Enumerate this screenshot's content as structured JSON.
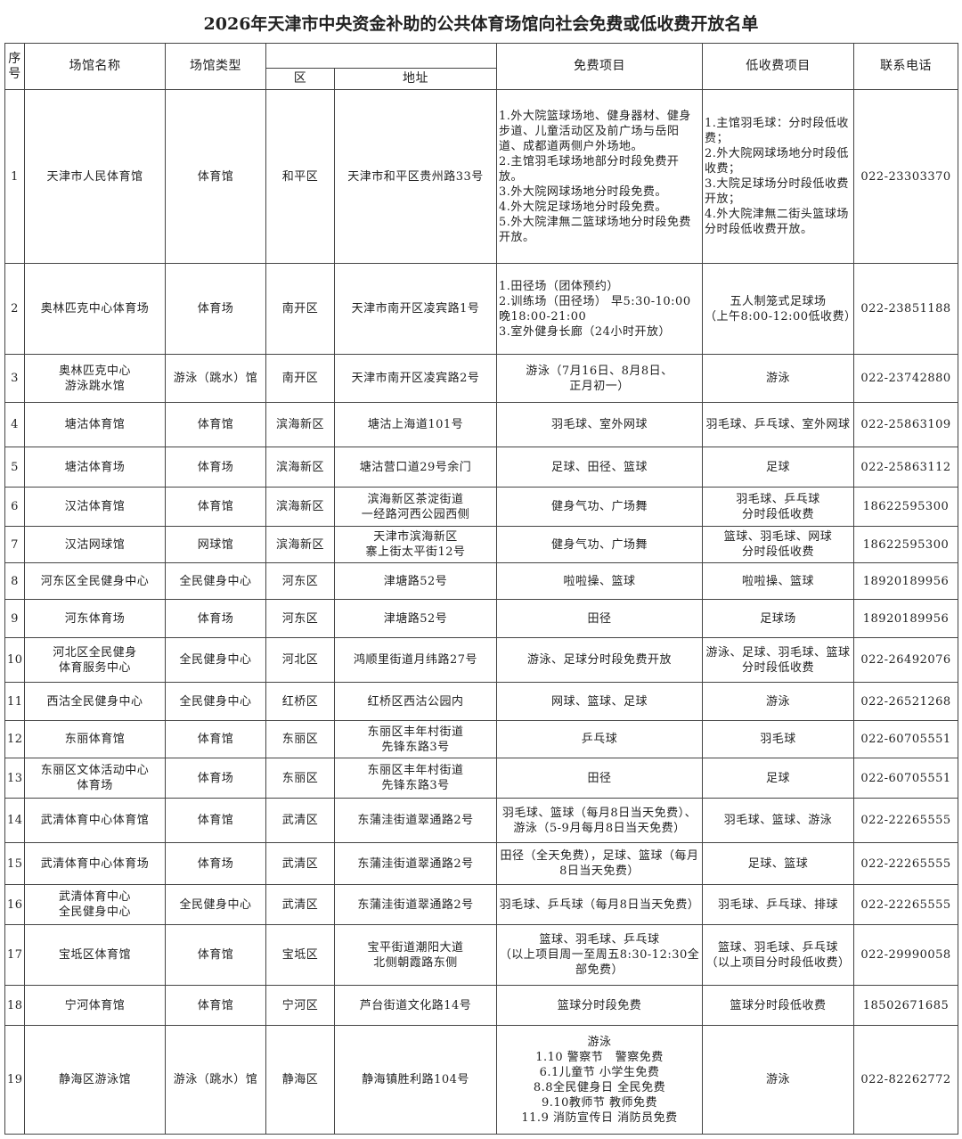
{
  "title": "2026年天津市中央资金补助的公共体育场馆向社会免费或低收费开放名单",
  "headers": {
    "seq": "序\n号",
    "name": "场馆名称",
    "type": "场馆类型",
    "district": "区",
    "address": "地址",
    "free": "免费项目",
    "low": "低收费项目",
    "phone": "联系电话"
  },
  "rows": [
    {
      "seq": "1",
      "name": "天津市人民体育馆",
      "type": "体育馆",
      "district": "和平区",
      "address": "天津市和平区贵州路33号",
      "free": "1.外大院篮球场地、健身器材、健身步道、儿童活动区及前广场与岳阳道、成都道两侧户外场地。\n2.主馆羽毛球场地部分时段免费开放。\n3.外大院网球场地分时段免费。\n4.外大院足球场地分时段免费。\n5.外大院津無二篮球场地分时段免费开放。",
      "low": "1.主馆羽毛球：分时段低收费；\n2.外大院网球场地分时段低收费；\n3.大院足球场分时段低收费开放；\n4.外大院津無二街头篮球场分时段低收费开放。",
      "phone": "022-23303370"
    },
    {
      "seq": "2",
      "name": "奥林匹克中心体育场",
      "type": "体育场",
      "district": "南开区",
      "address": "天津市南开区凌宾路1号",
      "free": "1.田径场（团体预约）\n2.训练场（田径场） 早5:30-10:00 晚18:00-21:00\n3.室外健身长廊（24小时开放）",
      "low": "五人制笼式足球场\n（上午8:00-12:00低收费）",
      "phone": "022-23851188"
    },
    {
      "seq": "3",
      "name": "奥林匹克中心\n游泳跳水馆",
      "type": "游泳（跳水）馆",
      "district": "南开区",
      "address": "天津市南开区凌宾路2号",
      "free": "游泳（7月16日、8月8日、\n正月初一）",
      "low": "游泳",
      "phone": "022-23742880"
    },
    {
      "seq": "4",
      "name": "塘沽体育馆",
      "type": "体育馆",
      "district": "滨海新区",
      "address": "塘沽上海道101号",
      "free": "羽毛球、室外网球",
      "low": "羽毛球、乒乓球、室外网球",
      "phone": "022-25863109"
    },
    {
      "seq": "5",
      "name": "塘沽体育场",
      "type": "体育场",
      "district": "滨海新区",
      "address": "塘沽营口道29号余门",
      "free": "足球、田径、篮球",
      "low": "足球",
      "phone": "022-25863112"
    },
    {
      "seq": "6",
      "name": "汉沽体育馆",
      "type": "体育馆",
      "district": "滨海新区",
      "address": "滨海新区茶淀街道\n一经路河西公园西侧",
      "free": "健身气功、广场舞",
      "low": "羽毛球、乒乓球\n分时段低收费",
      "phone": "18622595300"
    },
    {
      "seq": "7",
      "name": "汉沽网球馆",
      "type": "网球馆",
      "district": "滨海新区",
      "address": "天津市滨海新区\n寨上街太平街12号",
      "free": "健身气功、广场舞",
      "low": "篮球、羽毛球、网球\n分时段低收费",
      "phone": "18622595300"
    },
    {
      "seq": "8",
      "name": "河东区全民健身中心",
      "type": "全民健身中心",
      "district": "河东区",
      "address": "津塘路52号",
      "free": "啦啦操、篮球",
      "low": "啦啦操、篮球",
      "phone": "18920189956"
    },
    {
      "seq": "9",
      "name": "河东体育场",
      "type": "体育场",
      "district": "河东区",
      "address": "津塘路52号",
      "free": "田径",
      "low": "足球场",
      "phone": "18920189956"
    },
    {
      "seq": "10",
      "name": "河北区全民健身\n体育服务中心",
      "type": "全民健身中心",
      "district": "河北区",
      "address": "鸿顺里街道月纬路27号",
      "free": "游泳、足球分时段免费开放",
      "low": "游泳、足球、羽毛球、篮球分时段低收费",
      "phone": "022-26492076"
    },
    {
      "seq": "11",
      "name": "西沽全民健身中心",
      "type": "全民健身中心",
      "district": "红桥区",
      "address": "红桥区西沽公园内",
      "free": "网球、篮球、足球",
      "low": "游泳",
      "phone": "022-26521268"
    },
    {
      "seq": "12",
      "name": "东丽体育馆",
      "type": "体育馆",
      "district": "东丽区",
      "address": "东丽区丰年村街道\n先锋东路3号",
      "free": "乒乓球",
      "low": "羽毛球",
      "phone": "022-60705551"
    },
    {
      "seq": "13",
      "name": "东丽区文体活动中心\n体育场",
      "type": "体育场",
      "district": "东丽区",
      "address": "东丽区丰年村街道\n先锋东路3号",
      "free": "田径",
      "low": "足球",
      "phone": "022-60705551"
    },
    {
      "seq": "14",
      "name": "武清体育中心体育馆",
      "type": "体育馆",
      "district": "武清区",
      "address": "东蒲洼街道翠通路2号",
      "free": "羽毛球、篮球（每月8日当天免费）、游泳（5-9月每月8日当天免费）",
      "low": "羽毛球、篮球、游泳",
      "phone": "022-22265555"
    },
    {
      "seq": "15",
      "name": "武清体育中心体育场",
      "type": "体育场",
      "district": "武清区",
      "address": "东蒲洼街道翠通路2号",
      "free": "田径（全天免费），足球、篮球（每月8日当天免费）",
      "low": "足球、篮球",
      "phone": "022-22265555"
    },
    {
      "seq": "16",
      "name": "武清体育中心\n全民健身中心",
      "type": "全民健身中心",
      "district": "武清区",
      "address": "东蒲洼街道翠通路2号",
      "free": "羽毛球、乒乓球（每月8日当天免费）",
      "low": "羽毛球、乒乓球、排球",
      "phone": "022-22265555"
    },
    {
      "seq": "17",
      "name": "宝坻区体育馆",
      "type": "体育馆",
      "district": "宝坻区",
      "address": "宝平街道潮阳大道\n北侧朝霞路东侧",
      "free": "篮球、羽毛球、乒乓球\n（以上项目周一至周五8:30-12:30全部免费）",
      "low": "篮球、羽毛球、乒乓球\n（以上项目分时段低收费）",
      "phone": "022-29990058"
    },
    {
      "seq": "18",
      "name": "宁河体育馆",
      "type": "体育馆",
      "district": "宁河区",
      "address": "芦台街道文化路14号",
      "free": "篮球分时段免费",
      "low": "篮球分时段低收费",
      "phone": "18502671685"
    },
    {
      "seq": "19",
      "name": "静海区游泳馆",
      "type": "游泳（跳水）馆",
      "district": "静海区",
      "address": "静海镇胜利路104号",
      "free": "游泳\n1.10 警察节　警察免费\n6.1儿童节 小学生免费\n8.8全民健身日 全民免费\n9.10教师节 教师免费\n11.9 消防宣传日 消防员免费",
      "low": "游泳",
      "phone": "022-82262772"
    }
  ]
}
